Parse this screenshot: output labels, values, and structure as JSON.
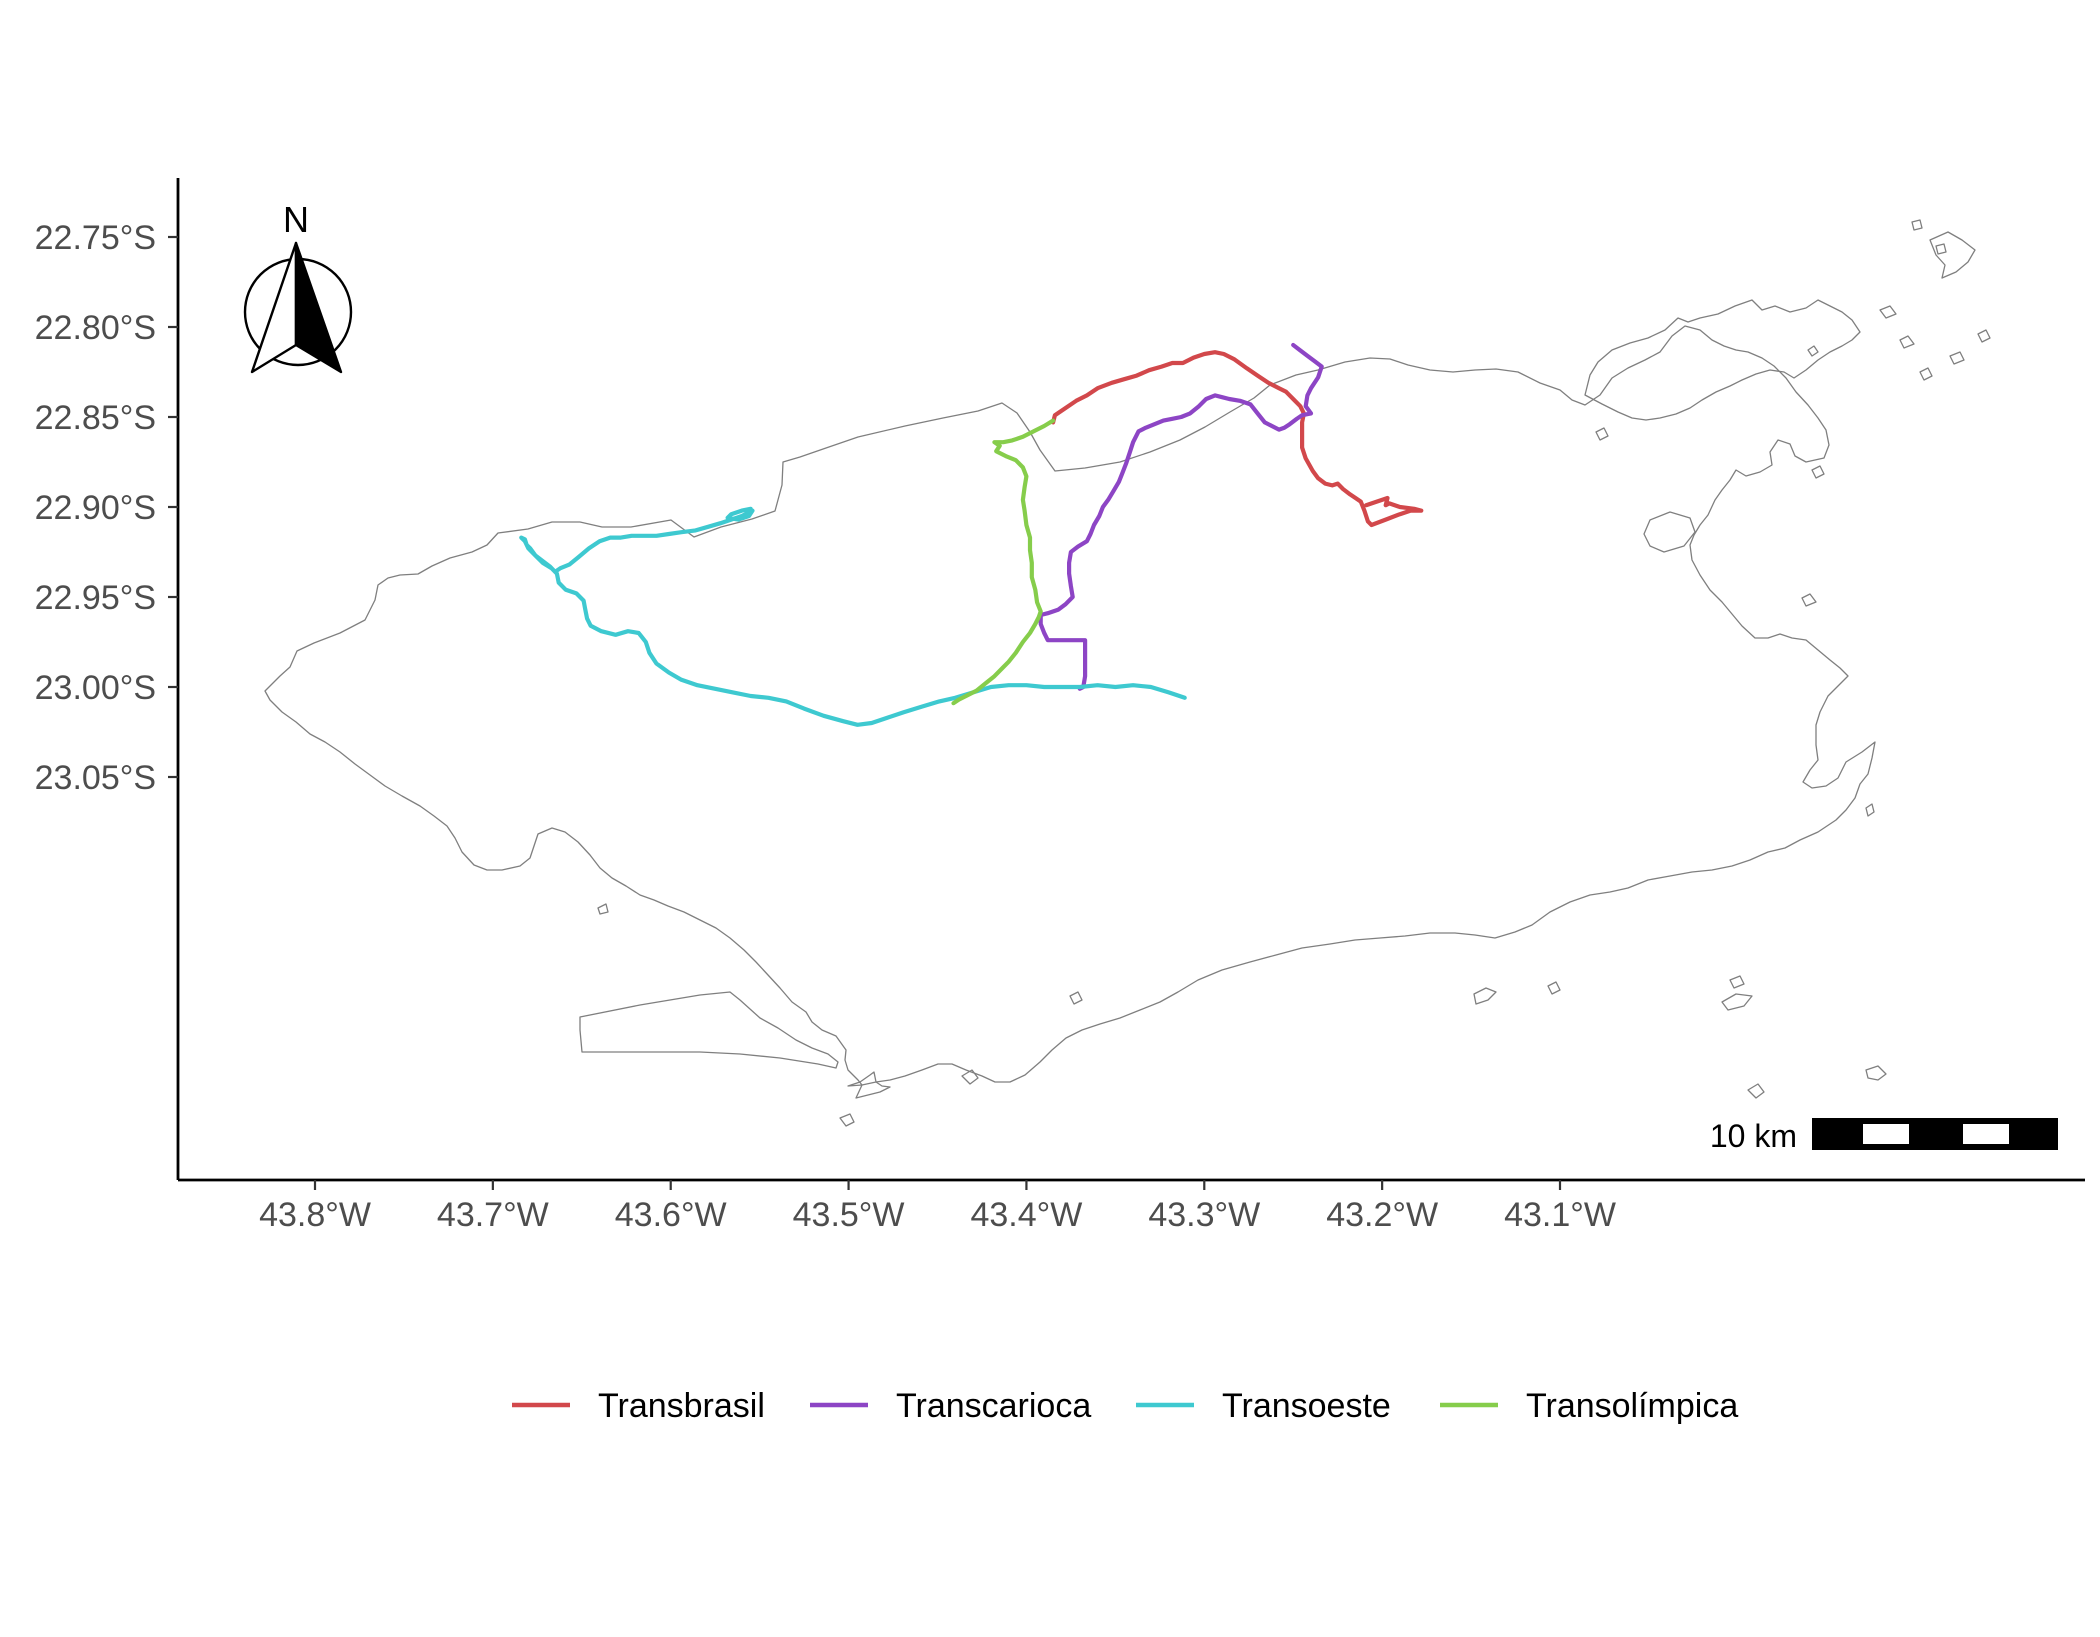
{
  "chart_data": {
    "type": "map",
    "xlabel": "",
    "ylabel": "",
    "xlim": [
      -43.83,
      -43.07
    ],
    "ylim": [
      -23.1,
      -22.73
    ],
    "x_ticks": [
      {
        "value": -43.8,
        "label": "43.8°W"
      },
      {
        "value": -43.7,
        "label": "43.7°W"
      },
      {
        "value": -43.6,
        "label": "43.6°W"
      },
      {
        "value": -43.5,
        "label": "43.5°W"
      },
      {
        "value": -43.4,
        "label": "43.4°W"
      },
      {
        "value": -43.3,
        "label": "43.3°W"
      },
      {
        "value": -43.2,
        "label": "43.2°W"
      },
      {
        "value": -43.1,
        "label": "43.1°W"
      }
    ],
    "y_ticks": [
      {
        "value": -22.75,
        "label": "22.75°S"
      },
      {
        "value": -22.8,
        "label": "22.80°S"
      },
      {
        "value": -22.85,
        "label": "22.85°S"
      },
      {
        "value": -22.9,
        "label": "22.90°S"
      },
      {
        "value": -22.95,
        "label": "22.95°S"
      },
      {
        "value": -23.0,
        "label": "23.00°S"
      },
      {
        "value": -23.05,
        "label": "23.05°S"
      }
    ],
    "legend_position": "bottom",
    "north_arrow": {
      "label": "N",
      "position": "top-left"
    },
    "scale_bar": {
      "label": "10 km",
      "position": "bottom-right"
    },
    "series": [
      {
        "name": "Transbrasil",
        "color": "#d2484b",
        "points": [
          [
            -43.385,
            -22.853
          ],
          [
            -43.384,
            -22.849
          ],
          [
            -43.378,
            -22.845
          ],
          [
            -43.372,
            -22.841
          ],
          [
            -43.366,
            -22.838
          ],
          [
            -43.36,
            -22.834
          ],
          [
            -43.352,
            -22.831
          ],
          [
            -43.345,
            -22.829
          ],
          [
            -43.338,
            -22.827
          ],
          [
            -43.331,
            -22.824
          ],
          [
            -43.324,
            -22.822
          ],
          [
            -43.318,
            -22.82
          ],
          [
            -43.312,
            -22.82
          ],
          [
            -43.306,
            -22.817
          ],
          [
            -43.3,
            -22.815
          ],
          [
            -43.294,
            -22.814
          ],
          [
            -43.289,
            -22.815
          ],
          [
            -43.283,
            -22.818
          ],
          [
            -43.276,
            -22.823
          ],
          [
            -43.27,
            -22.827
          ],
          [
            -43.264,
            -22.831
          ],
          [
            -43.258,
            -22.834
          ],
          [
            -43.254,
            -22.836
          ],
          [
            -43.25,
            -22.84
          ],
          [
            -43.246,
            -22.844
          ],
          [
            -43.244,
            -22.848
          ],
          [
            -43.245,
            -22.853
          ],
          [
            -43.245,
            -22.86
          ],
          [
            -43.245,
            -22.867
          ],
          [
            -43.243,
            -22.873
          ],
          [
            -43.239,
            -22.88
          ],
          [
            -43.236,
            -22.884
          ],
          [
            -43.232,
            -22.887
          ],
          [
            -43.228,
            -22.888
          ],
          [
            -43.225,
            -22.887
          ],
          [
            -43.222,
            -22.89
          ],
          [
            -43.218,
            -22.893
          ],
          [
            -43.215,
            -22.895
          ],
          [
            -43.212,
            -22.897
          ],
          [
            -43.21,
            -22.902
          ],
          [
            -43.208,
            -22.908
          ],
          [
            -43.206,
            -22.91
          ],
          [
            -43.198,
            -22.907
          ],
          [
            -43.19,
            -22.904
          ],
          [
            -43.184,
            -22.902
          ],
          [
            -43.178,
            -22.902
          ],
          [
            -43.182,
            -22.901
          ],
          [
            -43.19,
            -22.9
          ],
          [
            -43.196,
            -22.898
          ],
          [
            -43.198,
            -22.899
          ],
          [
            -43.197,
            -22.895
          ],
          [
            -43.203,
            -22.897
          ],
          [
            -43.209,
            -22.899
          ]
        ]
      },
      {
        "name": "Transcarioca",
        "color": "#8d45c5",
        "points": [
          [
            -43.25,
            -22.81
          ],
          [
            -43.246,
            -22.813
          ],
          [
            -43.242,
            -22.816
          ],
          [
            -43.238,
            -22.819
          ],
          [
            -43.234,
            -22.822
          ],
          [
            -43.236,
            -22.828
          ],
          [
            -43.24,
            -22.834
          ],
          [
            -43.242,
            -22.838
          ],
          [
            -43.243,
            -22.844
          ],
          [
            -43.24,
            -22.848
          ],
          [
            -43.245,
            -22.849
          ],
          [
            -43.248,
            -22.851
          ],
          [
            -43.252,
            -22.854
          ],
          [
            -43.255,
            -22.856
          ],
          [
            -43.258,
            -22.857
          ],
          [
            -43.262,
            -22.855
          ],
          [
            -43.266,
            -22.853
          ],
          [
            -43.27,
            -22.848
          ],
          [
            -43.274,
            -22.843
          ],
          [
            -43.28,
            -22.841
          ],
          [
            -43.286,
            -22.84
          ],
          [
            -43.29,
            -22.839
          ],
          [
            -43.294,
            -22.838
          ],
          [
            -43.299,
            -22.84
          ],
          [
            -43.303,
            -22.844
          ],
          [
            -43.308,
            -22.848
          ],
          [
            -43.313,
            -22.85
          ],
          [
            -43.318,
            -22.851
          ],
          [
            -43.323,
            -22.852
          ],
          [
            -43.328,
            -22.854
          ],
          [
            -43.333,
            -22.856
          ],
          [
            -43.337,
            -22.858
          ],
          [
            -43.34,
            -22.864
          ],
          [
            -43.342,
            -22.87
          ],
          [
            -43.344,
            -22.876
          ],
          [
            -43.346,
            -22.881
          ],
          [
            -43.348,
            -22.886
          ],
          [
            -43.351,
            -22.891
          ],
          [
            -43.354,
            -22.896
          ],
          [
            -43.357,
            -22.9
          ],
          [
            -43.359,
            -22.905
          ],
          [
            -43.362,
            -22.91
          ],
          [
            -43.364,
            -22.915
          ],
          [
            -43.366,
            -22.919
          ],
          [
            -43.371,
            -22.922
          ],
          [
            -43.375,
            -22.925
          ],
          [
            -43.376,
            -22.931
          ],
          [
            -43.376,
            -22.937
          ],
          [
            -43.375,
            -22.944
          ],
          [
            -43.374,
            -22.95
          ],
          [
            -43.378,
            -22.954
          ],
          [
            -43.382,
            -22.957
          ],
          [
            -43.388,
            -22.959
          ],
          [
            -43.392,
            -22.96
          ],
          [
            -43.392,
            -22.965
          ],
          [
            -43.39,
            -22.97
          ],
          [
            -43.388,
            -22.974
          ],
          [
            -43.38,
            -22.974
          ],
          [
            -43.372,
            -22.974
          ],
          [
            -43.367,
            -22.974
          ],
          [
            -43.367,
            -22.98
          ],
          [
            -43.367,
            -22.987
          ],
          [
            -43.367,
            -22.994
          ],
          [
            -43.368,
            -23.0
          ],
          [
            -43.37,
            -23.001
          ]
        ]
      },
      {
        "name": "Transoeste",
        "color": "#3ec9d0",
        "points": [
          [
            -43.555,
            -22.901
          ],
          [
            -43.56,
            -22.902
          ],
          [
            -43.566,
            -22.904
          ],
          [
            -43.568,
            -22.906
          ],
          [
            -43.562,
            -22.907
          ],
          [
            -43.556,
            -22.905
          ],
          [
            -43.554,
            -22.902
          ],
          [
            -43.56,
            -22.905
          ],
          [
            -43.566,
            -22.907
          ],
          [
            -43.572,
            -22.909
          ],
          [
            -43.579,
            -22.911
          ],
          [
            -43.586,
            -22.913
          ],
          [
            -43.594,
            -22.914
          ],
          [
            -43.601,
            -22.915
          ],
          [
            -43.608,
            -22.916
          ],
          [
            -43.615,
            -22.916
          ],
          [
            -43.622,
            -22.916
          ],
          [
            -43.628,
            -22.917
          ],
          [
            -43.634,
            -22.917
          ],
          [
            -43.64,
            -22.919
          ],
          [
            -43.646,
            -22.923
          ],
          [
            -43.652,
            -22.928
          ],
          [
            -43.657,
            -22.932
          ],
          [
            -43.662,
            -22.934
          ],
          [
            -43.665,
            -22.936
          ],
          [
            -43.668,
            -22.933
          ],
          [
            -43.672,
            -22.93
          ],
          [
            -43.676,
            -22.927
          ],
          [
            -43.679,
            -22.923
          ],
          [
            -43.681,
            -22.921
          ],
          [
            -43.682,
            -22.918
          ],
          [
            -43.684,
            -22.917
          ],
          [
            -43.682,
            -22.919
          ],
          [
            -43.68,
            -22.923
          ],
          [
            -43.676,
            -22.927
          ],
          [
            -43.672,
            -22.931
          ],
          [
            -43.667,
            -22.934
          ],
          [
            -43.664,
            -22.937
          ],
          [
            -43.663,
            -22.942
          ],
          [
            -43.659,
            -22.946
          ],
          [
            -43.653,
            -22.948
          ],
          [
            -43.649,
            -22.952
          ],
          [
            -43.648,
            -22.957
          ],
          [
            -43.647,
            -22.962
          ],
          [
            -43.645,
            -22.966
          ],
          [
            -43.639,
            -22.969
          ],
          [
            -43.631,
            -22.971
          ],
          [
            -43.624,
            -22.969
          ],
          [
            -43.618,
            -22.97
          ],
          [
            -43.614,
            -22.975
          ],
          [
            -43.612,
            -22.981
          ],
          [
            -43.608,
            -22.987
          ],
          [
            -43.601,
            -22.992
          ],
          [
            -43.594,
            -22.996
          ],
          [
            -43.585,
            -22.999
          ],
          [
            -43.575,
            -23.001
          ],
          [
            -43.565,
            -23.003
          ],
          [
            -43.555,
            -23.005
          ],
          [
            -43.545,
            -23.006
          ],
          [
            -43.535,
            -23.008
          ],
          [
            -43.525,
            -23.012
          ],
          [
            -43.514,
            -23.016
          ],
          [
            -43.503,
            -23.019
          ],
          [
            -43.495,
            -23.021
          ],
          [
            -43.487,
            -23.02
          ],
          [
            -43.478,
            -23.017
          ],
          [
            -43.469,
            -23.014
          ],
          [
            -43.459,
            -23.011
          ],
          [
            -43.449,
            -23.008
          ],
          [
            -43.44,
            -23.006
          ],
          [
            -43.43,
            -23.003
          ],
          [
            -43.42,
            -23.0
          ],
          [
            -43.41,
            -22.999
          ],
          [
            -43.4,
            -22.999
          ],
          [
            -43.39,
            -23.0
          ],
          [
            -43.38,
            -23.0
          ],
          [
            -43.37,
            -23.0
          ],
          [
            -43.36,
            -22.999
          ],
          [
            -43.35,
            -23.0
          ],
          [
            -43.34,
            -22.999
          ],
          [
            -43.33,
            -23.0
          ],
          [
            -43.32,
            -23.003
          ],
          [
            -43.311,
            -23.006
          ]
        ]
      },
      {
        "name": "Transolímpica",
        "color": "#86cd4b",
        "points": [
          [
            -43.385,
            -22.852
          ],
          [
            -43.39,
            -22.855
          ],
          [
            -43.396,
            -22.858
          ],
          [
            -43.402,
            -22.861
          ],
          [
            -43.408,
            -22.863
          ],
          [
            -43.413,
            -22.864
          ],
          [
            -43.418,
            -22.864
          ],
          [
            -43.415,
            -22.866
          ],
          [
            -43.417,
            -22.869
          ],
          [
            -43.411,
            -22.872
          ],
          [
            -43.406,
            -22.874
          ],
          [
            -43.402,
            -22.878
          ],
          [
            -43.4,
            -22.883
          ],
          [
            -43.401,
            -22.889
          ],
          [
            -43.402,
            -22.896
          ],
          [
            -43.401,
            -22.902
          ],
          [
            -43.4,
            -22.91
          ],
          [
            -43.398,
            -22.917
          ],
          [
            -43.398,
            -22.924
          ],
          [
            -43.397,
            -22.931
          ],
          [
            -43.397,
            -22.939
          ],
          [
            -43.395,
            -22.946
          ],
          [
            -43.394,
            -22.953
          ],
          [
            -43.392,
            -22.958
          ],
          [
            -43.393,
            -22.961
          ],
          [
            -43.395,
            -22.965
          ],
          [
            -43.398,
            -22.97
          ],
          [
            -43.402,
            -22.975
          ],
          [
            -43.406,
            -22.981
          ],
          [
            -43.41,
            -22.986
          ],
          [
            -43.414,
            -22.99
          ],
          [
            -43.418,
            -22.994
          ],
          [
            -43.423,
            -22.998
          ],
          [
            -43.428,
            -23.002
          ],
          [
            -43.434,
            -23.005
          ],
          [
            -43.438,
            -23.007
          ],
          [
            -43.441,
            -23.009
          ]
        ]
      }
    ]
  }
}
